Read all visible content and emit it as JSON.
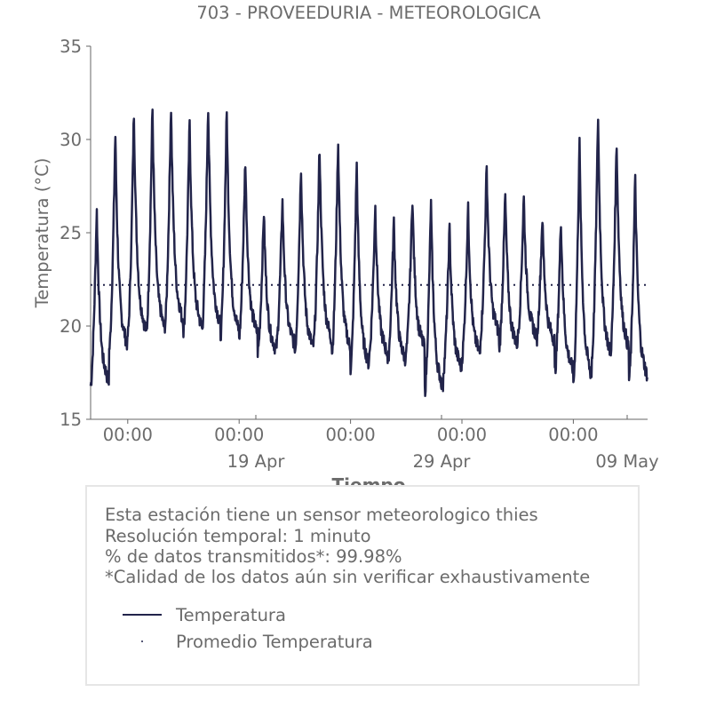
{
  "chart_data": {
    "type": "line",
    "title": "703 - PROVEEDURIA - METEOROLOGICA",
    "xlabel": "Tiempo",
    "ylabel": "Temperatura (°C)",
    "ylim": [
      15,
      35
    ],
    "yticks": [
      15,
      20,
      25,
      30,
      35
    ],
    "xlim": [
      0,
      30
    ],
    "xticks_time": [
      {
        "x": 2.0,
        "label": "00:00"
      },
      {
        "x": 8.0,
        "label": "00:00"
      },
      {
        "x": 14.0,
        "label": "00:00"
      },
      {
        "x": 20.0,
        "label": "00:00"
      },
      {
        "x": 26.0,
        "label": "00:00"
      }
    ],
    "xticks_date": [
      {
        "x": 8.0,
        "label": "19 Apr"
      },
      {
        "x": 18.0,
        "label": "29 Apr"
      },
      {
        "x": 28.0,
        "label": "09 May"
      }
    ],
    "grid": false,
    "series": [
      {
        "name": "Temperatura",
        "color": "#22244a",
        "style": "solid",
        "daily_min": [
          16.8,
          18.7,
          19.5,
          19.6,
          20.0,
          19.7,
          19.8,
          19.5,
          19.4,
          18.6,
          18.9,
          18.6,
          19.0,
          18.6,
          17.7,
          18.4,
          18.0,
          18.7,
          16.5,
          17.6,
          18.3,
          19.5,
          18.8,
          19.4,
          19.1,
          17.5,
          17.0,
          18.3,
          18.6,
          17.1
        ],
        "daily_max": [
          26.3,
          30.4,
          31.6,
          31.8,
          31.9,
          31.0,
          32.0,
          31.6,
          29.0,
          26.2,
          26.8,
          28.7,
          29.7,
          30.0,
          28.8,
          26.5,
          25.7,
          27.0,
          26.7,
          25.3,
          26.4,
          28.6,
          27.1,
          27.0,
          25.9,
          25.8,
          30.0,
          31.4,
          30.0,
          28.0
        ]
      },
      {
        "name": "Promedio Temperatura",
        "color": "#22244a",
        "style": "dotted",
        "value": 22.2
      }
    ]
  },
  "info": {
    "lines": [
      "Esta estación tiene un sensor meteorologico thies",
      "Resolución temporal: 1 minuto",
      "% de datos transmitidos*: 99.98%",
      "*Calidad de los datos aún sin verificar exhaustivamente"
    ]
  },
  "legend": {
    "items": [
      "Temperatura",
      "Promedio Temperatura"
    ]
  }
}
